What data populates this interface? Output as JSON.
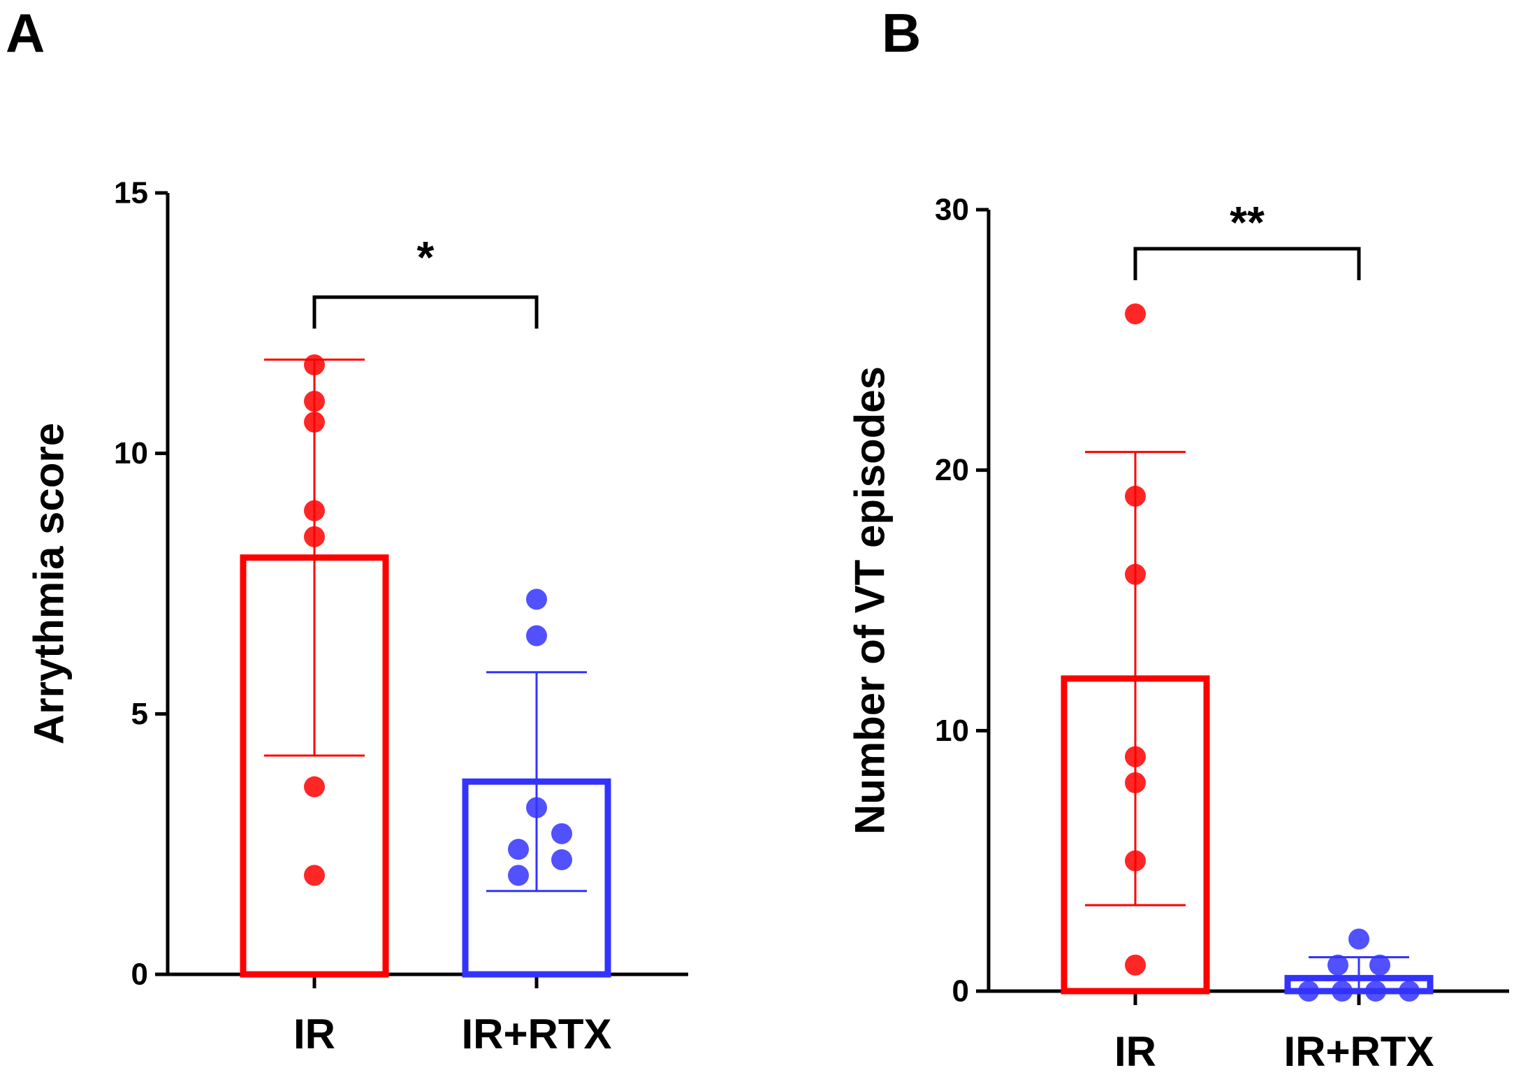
{
  "chart_data": [
    {
      "panel": "A",
      "type": "bar",
      "ylabel": "Arrythmia score",
      "xlabel": "",
      "ylim": [
        0,
        15
      ],
      "yticks": [
        0,
        5,
        10,
        15
      ],
      "categories": [
        "IR",
        "IR+RTX"
      ],
      "bars": [
        {
          "name": "IR",
          "mean": 8.0,
          "sd_low": 4.2,
          "sd_high": 11.8,
          "color": "#ff0000",
          "points": [
            11.7,
            11.0,
            10.6,
            8.9,
            8.4,
            3.6,
            1.9
          ]
        },
        {
          "name": "IR+RTX",
          "mean": 3.7,
          "sd_low": 1.6,
          "sd_high": 5.8,
          "color": "#3333ff",
          "points": [
            7.2,
            6.5,
            3.2,
            2.7,
            2.4,
            2.2,
            1.9
          ]
        }
      ],
      "significance": "*"
    },
    {
      "panel": "B",
      "type": "bar",
      "ylabel": "Number of VT episodes",
      "xlabel": "",
      "ylim": [
        0,
        30
      ],
      "yticks": [
        0,
        10,
        20,
        30
      ],
      "categories": [
        "IR",
        "IR+RTX"
      ],
      "bars": [
        {
          "name": "IR",
          "mean": 12.0,
          "sd_low": 3.3,
          "sd_high": 20.7,
          "color": "#ff0000",
          "points": [
            26,
            19,
            16,
            9,
            8,
            5,
            1
          ]
        },
        {
          "name": "IR+RTX",
          "mean": 0.5,
          "sd_low": 0.0,
          "sd_high": 1.3,
          "color": "#3333ff",
          "points": [
            2,
            1,
            1,
            0,
            0,
            0,
            0
          ]
        }
      ],
      "significance": "**"
    }
  ]
}
